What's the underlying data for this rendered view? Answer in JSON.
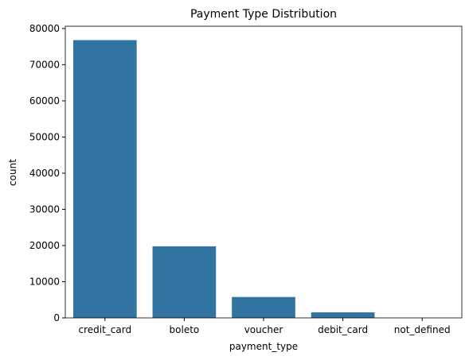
{
  "chart_data": {
    "type": "bar",
    "title": "Payment Type Distribution",
    "x_label": "payment_type",
    "y_label": "count",
    "categories": [
      "credit_card",
      "boleto",
      "voucher",
      "debit_card",
      "not_defined"
    ],
    "values": [
      76795,
      19784,
      5775,
      1529,
      3
    ],
    "color": "#3274a1",
    "ylim": [
      0,
      80635
    ],
    "yticks": [
      0,
      10000,
      20000,
      30000,
      40000,
      50000,
      60000,
      70000,
      80000
    ],
    "grid": false
  }
}
